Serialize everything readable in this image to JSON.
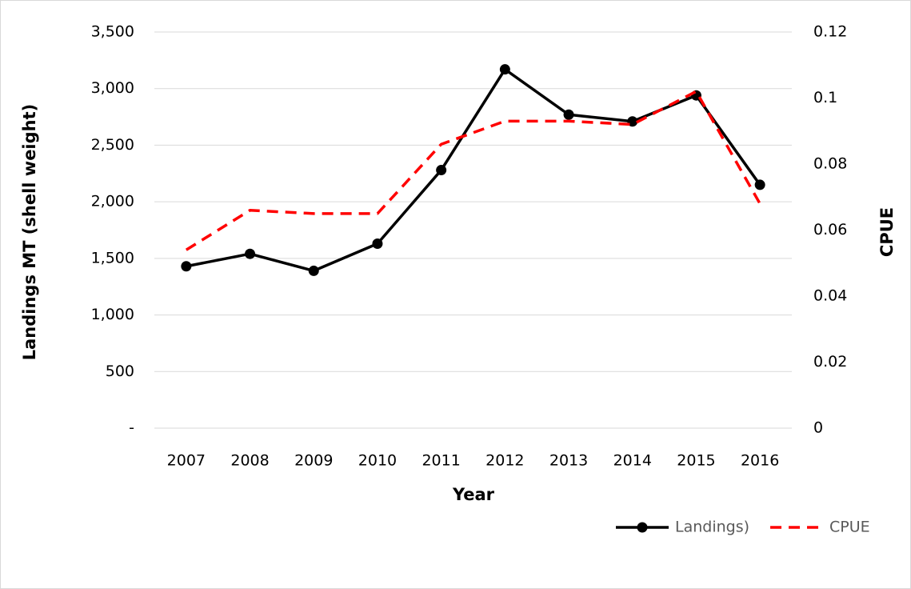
{
  "chart_data": {
    "type": "line",
    "categories": [
      "2007",
      "2008",
      "2009",
      "2010",
      "2011",
      "2012",
      "2013",
      "2014",
      "2015",
      "2016"
    ],
    "series": [
      {
        "name": "Landings)",
        "color": "#000000",
        "dash": false,
        "marker": "circle",
        "axis": "y",
        "values": [
          1430,
          1540,
          1390,
          1630,
          2280,
          3170,
          2770,
          2710,
          2940,
          2150
        ]
      },
      {
        "name": "CPUE",
        "color": "#ff0000",
        "dash": true,
        "marker": "none",
        "axis": "y2",
        "values": [
          0.054,
          0.066,
          0.065,
          0.065,
          0.086,
          0.093,
          0.093,
          0.092,
          0.102,
          0.068
        ]
      }
    ],
    "xlabel": "Year",
    "ylabel": "Landings MT (shell weight)",
    "y2label": "CPUE",
    "ylim": [
      0,
      3500
    ],
    "yticks": [
      {
        "value": 0,
        "label": "-"
      },
      500,
      {
        "value": 1000,
        "label": "1,000"
      },
      {
        "value": 1500,
        "label": "1,500"
      },
      {
        "value": 2000,
        "label": "2,000"
      },
      {
        "value": 2500,
        "label": "2,500"
      },
      {
        "value": 3000,
        "label": "3,000"
      },
      {
        "value": 3500,
        "label": "3,500"
      }
    ],
    "y2lim": [
      0,
      0.12
    ],
    "y2ticks": [
      0,
      0.02,
      0.04,
      0.06,
      0.08,
      0.1,
      0.12
    ],
    "grid": true,
    "legend": "bottom-right"
  }
}
